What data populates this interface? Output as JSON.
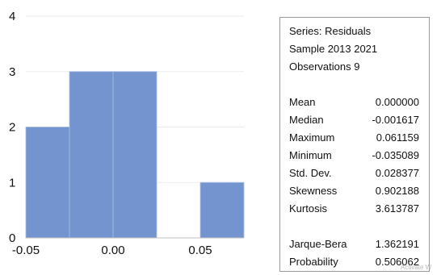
{
  "chart_data": {
    "type": "bar",
    "bin_edges": [
      -0.05,
      -0.025,
      0.0,
      0.025,
      0.05,
      0.075
    ],
    "values": [
      2,
      3,
      3,
      0,
      1
    ],
    "x_ticks": [
      "-0.05",
      "0.00",
      "0.05"
    ],
    "y_ticks": [
      "0",
      "1",
      "2",
      "3",
      "4"
    ],
    "ylim": [
      0,
      4
    ],
    "xlim": [
      -0.05,
      0.075
    ],
    "bar_color": "#7494cf",
    "grid": true
  },
  "stats": {
    "header": [
      "Series: Residuals",
      "Sample 2013 2021",
      "Observations 9"
    ],
    "moments": [
      {
        "label": "Mean",
        "value": "0.000000"
      },
      {
        "label": "Median",
        "value": "-0.001617"
      },
      {
        "label": "Maximum",
        "value": "0.061159"
      },
      {
        "label": "Minimum",
        "value": "-0.035089"
      },
      {
        "label": "Std. Dev.",
        "value": "0.028377"
      },
      {
        "label": "Skewness",
        "value": "0.902188"
      },
      {
        "label": "Kurtosis",
        "value": "3.613787"
      }
    ],
    "tests": [
      {
        "label": "Jarque-Bera",
        "value": "1.362191"
      },
      {
        "label": "Probability",
        "value": "0.506062"
      }
    ]
  },
  "watermark": "Activate W"
}
